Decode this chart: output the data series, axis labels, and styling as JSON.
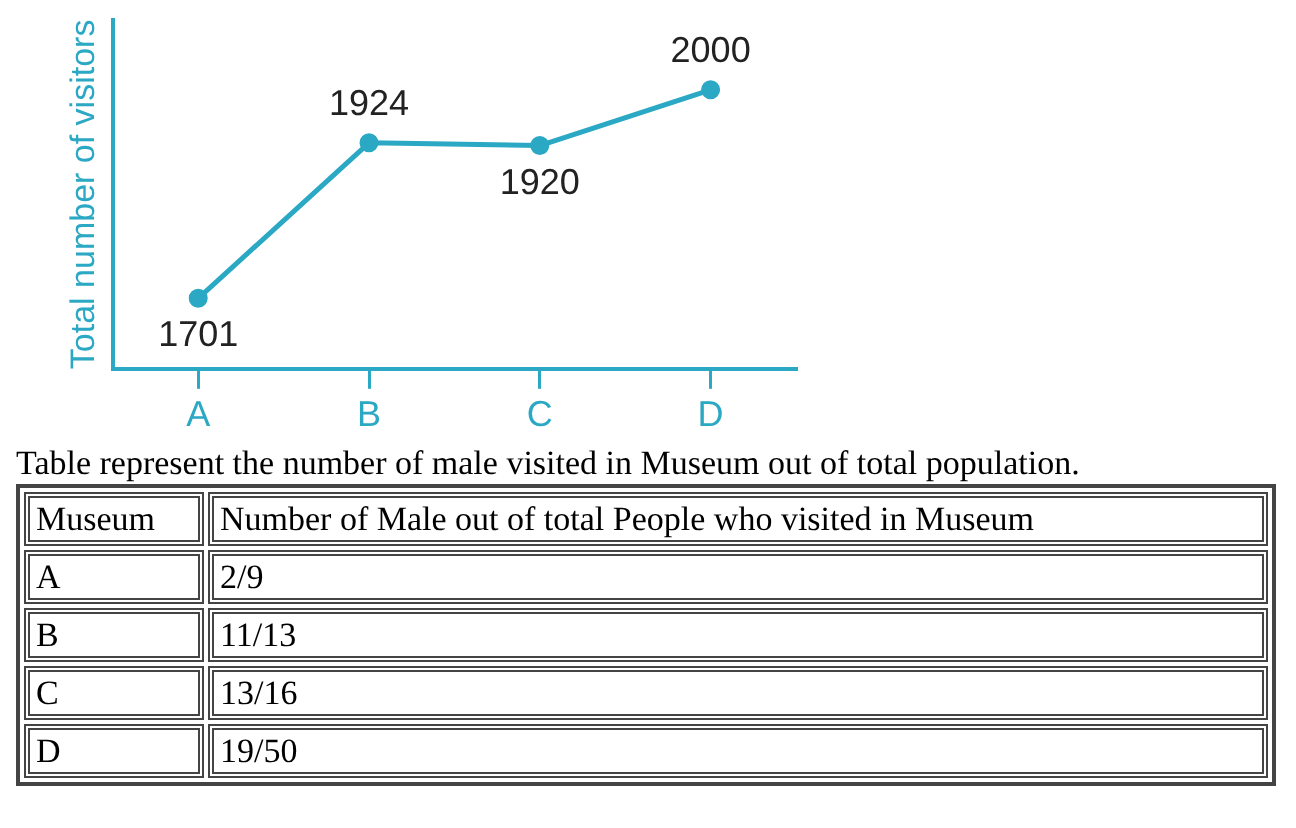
{
  "chart_data": [
    {
      "type": "line",
      "ylabel": "Total number of visitors",
      "categories": [
        "A",
        "B",
        "C",
        "D"
      ],
      "series": [
        {
          "color": "#2aa8c4",
          "values": [
            1701,
            1924,
            1920,
            2000
          ]
        }
      ],
      "data_labels": true,
      "marker": "circle",
      "legend": false,
      "grid": false,
      "tick_labels": "x"
    },
    {
      "type": "other",
      "title": "Table represent the number of male visited in Museum out of total population.",
      "annotations": [
        "Museum",
        "Number of Male out of total People who visited in Museum",
        "A",
        "2/9",
        "B",
        "11/13",
        "C",
        "13/16",
        "D",
        "19/50"
      ]
    }
  ]
}
